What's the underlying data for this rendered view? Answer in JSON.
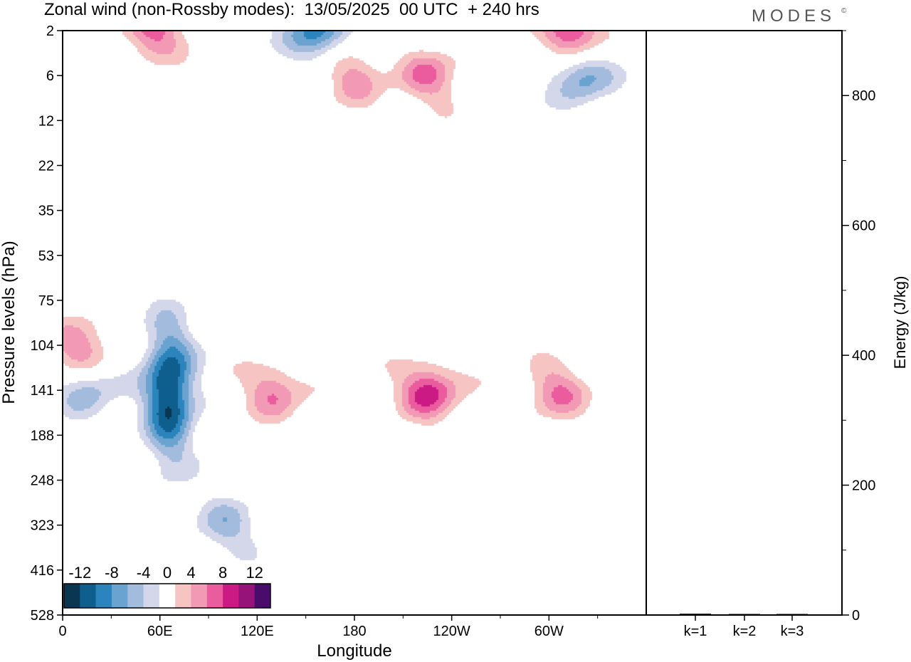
{
  "title": "Zonal wind (non-Rossby modes):  13/05/2025  00 UTC  + 240 hrs",
  "logo": "MODES",
  "logo_mark": "©",
  "colors": {
    "negative": [
      "#0b3652",
      "#0e5e8e",
      "#2c84bd",
      "#6aa3cf",
      "#a3bbdc",
      "#d4d7ea"
    ],
    "neutral": "#ffffff",
    "positive": [
      "#f6c4c2",
      "#f29ab5",
      "#ea5c9e",
      "#cb1a83",
      "#96137a",
      "#4a0c6b"
    ]
  },
  "chart_data": [
    {
      "type": "heatmap",
      "title": "Zonal wind (non-Rossby modes):  13/05/2025  00 UTC  + 240 hrs",
      "xlabel": "Longitude",
      "ylabel": "Pressure levels (hPa)",
      "x_ticks": [
        "0",
        "60E",
        "120E",
        "180",
        "120W",
        "60W"
      ],
      "x_tick_values": [
        0,
        60,
        120,
        180,
        240,
        300
      ],
      "xlim": [
        0,
        360
      ],
      "y_ticks": [
        "2",
        "6",
        "12",
        "22",
        "35",
        "53",
        "75",
        "104",
        "141",
        "188",
        "248",
        "323",
        "416",
        "528"
      ],
      "colorbar": {
        "labels": [
          "-12",
          "-8",
          "-4",
          "0",
          "4",
          "8",
          "12"
        ],
        "levels": [
          -14,
          -12,
          -10,
          -8,
          -6,
          -4,
          -2,
          2,
          4,
          6,
          8,
          10,
          12,
          14
        ],
        "placement": "lower-left"
      },
      "features": [
        {
          "lon": 65,
          "level": "141",
          "value": -13
        },
        {
          "lon": 15,
          "level": "141",
          "value": -5
        },
        {
          "lon": 100,
          "level": "323",
          "value": -5
        },
        {
          "lon": 155,
          "level": "2",
          "value": -9
        },
        {
          "lon": 320,
          "level": "6",
          "value": -7
        },
        {
          "lon": 315,
          "level": "2",
          "value": 9
        },
        {
          "lon": 225,
          "level": "141",
          "value": 9
        },
        {
          "lon": 130,
          "level": "141",
          "value": 6
        },
        {
          "lon": 305,
          "level": "141",
          "value": 6
        },
        {
          "lon": 10,
          "level": "104",
          "value": 6
        },
        {
          "lon": 55,
          "level": "2",
          "value": 7
        },
        {
          "lon": 180,
          "level": "6",
          "value": 5
        },
        {
          "lon": 225,
          "level": "6",
          "value": 6
        }
      ]
    },
    {
      "type": "bar",
      "categories": [
        "k=1",
        "k=2",
        "k=3"
      ],
      "values": [
        2,
        1,
        1
      ],
      "ylabel": "Energy (J/kg)",
      "ylim": [
        0,
        900
      ],
      "y_ticks": [
        0,
        200,
        400,
        600,
        800
      ],
      "y_minor_step": 100
    }
  ]
}
